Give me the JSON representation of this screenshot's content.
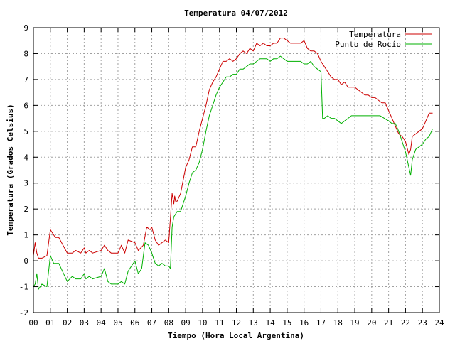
{
  "chart_data": {
    "type": "line",
    "title": "Temperatura 04/07/2012",
    "xlabel": "Tiempo (Hora Local Argentina)",
    "ylabel": "Temperatura (Grados Celsius)",
    "xlim": [
      0,
      24
    ],
    "ylim": [
      -2,
      9
    ],
    "x_ticks": [
      "00",
      "01",
      "02",
      "03",
      "04",
      "05",
      "06",
      "07",
      "08",
      "09",
      "10",
      "11",
      "12",
      "13",
      "14",
      "15",
      "16",
      "17",
      "18",
      "19",
      "20",
      "21",
      "22",
      "23",
      "24"
    ],
    "y_ticks": [
      "-2",
      "-1",
      "0",
      "1",
      "2",
      "3",
      "4",
      "5",
      "6",
      "7",
      "8",
      "9"
    ],
    "grid": true,
    "legend_position": "top-right",
    "series": [
      {
        "name": "Temperatura",
        "color": "#cc0000",
        "x": [
          0.0,
          0.1,
          0.2,
          0.3,
          0.5,
          0.8,
          1.0,
          1.2,
          1.3,
          1.5,
          2.0,
          2.3,
          2.5,
          2.8,
          3.0,
          3.1,
          3.3,
          3.5,
          4.0,
          4.2,
          4.4,
          4.6,
          5.0,
          5.2,
          5.4,
          5.6,
          6.0,
          6.2,
          6.5,
          6.7,
          6.9,
          7.0,
          7.2,
          7.4,
          7.6,
          7.8,
          8.0,
          8.2,
          8.3,
          8.35,
          8.4,
          8.5,
          8.7,
          9.0,
          9.2,
          9.4,
          9.6,
          9.8,
          10.0,
          10.2,
          10.4,
          10.6,
          10.8,
          11.0,
          11.2,
          11.4,
          11.6,
          11.8,
          12.0,
          12.2,
          12.4,
          12.6,
          12.8,
          13.0,
          13.2,
          13.4,
          13.6,
          13.8,
          14.0,
          14.2,
          14.4,
          14.6,
          14.8,
          15.0,
          15.2,
          15.4,
          15.6,
          15.8,
          16.0,
          16.2,
          16.4,
          16.6,
          16.8,
          17.0,
          17.2,
          17.4,
          17.6,
          17.8,
          18.0,
          18.2,
          18.4,
          18.6,
          18.8,
          19.0,
          19.2,
          19.4,
          19.6,
          19.8,
          20.0,
          20.2,
          20.4,
          20.6,
          20.8,
          21.0,
          21.2,
          21.4,
          21.6,
          21.8,
          22.0,
          22.2,
          22.3,
          22.4,
          22.6,
          22.8,
          23.0,
          23.2,
          23.4,
          23.6
        ],
        "y": [
          0.2,
          0.7,
          0.3,
          0.1,
          0.1,
          0.2,
          1.2,
          1.0,
          0.9,
          0.9,
          0.3,
          0.3,
          0.4,
          0.3,
          0.5,
          0.3,
          0.4,
          0.3,
          0.4,
          0.6,
          0.4,
          0.3,
          0.3,
          0.6,
          0.3,
          0.8,
          0.7,
          0.4,
          0.6,
          1.3,
          1.2,
          1.3,
          0.8,
          0.6,
          0.7,
          0.8,
          0.7,
          2.6,
          2.2,
          2.5,
          2.3,
          2.3,
          2.6,
          3.6,
          3.9,
          4.4,
          4.4,
          5.0,
          5.5,
          6.0,
          6.6,
          6.9,
          7.1,
          7.4,
          7.7,
          7.7,
          7.8,
          7.7,
          7.8,
          8.0,
          8.1,
          8.0,
          8.2,
          8.1,
          8.4,
          8.3,
          8.4,
          8.3,
          8.3,
          8.4,
          8.4,
          8.6,
          8.6,
          8.5,
          8.4,
          8.4,
          8.4,
          8.4,
          8.5,
          8.2,
          8.1,
          8.1,
          8.0,
          7.7,
          7.5,
          7.3,
          7.1,
          7.0,
          7.0,
          6.8,
          6.9,
          6.7,
          6.7,
          6.7,
          6.6,
          6.5,
          6.4,
          6.4,
          6.3,
          6.3,
          6.2,
          6.1,
          6.1,
          5.8,
          5.5,
          5.2,
          4.9,
          4.8,
          4.6,
          4.1,
          4.3,
          4.8,
          4.9,
          5.0,
          5.1,
          5.4,
          5.7,
          5.7
        ]
      },
      {
        "name": "Punto de Rocío",
        "color": "#00b000",
        "x": [
          0.0,
          0.1,
          0.2,
          0.3,
          0.5,
          0.8,
          1.0,
          1.2,
          1.5,
          2.0,
          2.3,
          2.5,
          2.8,
          3.0,
          3.1,
          3.3,
          3.5,
          4.0,
          4.2,
          4.4,
          4.6,
          5.0,
          5.2,
          5.4,
          5.6,
          6.0,
          6.2,
          6.4,
          6.6,
          6.8,
          7.0,
          7.2,
          7.4,
          7.6,
          7.8,
          8.0,
          8.1,
          8.2,
          8.3,
          8.5,
          8.7,
          9.0,
          9.2,
          9.4,
          9.6,
          9.8,
          10.0,
          10.2,
          10.4,
          10.6,
          10.8,
          11.0,
          11.2,
          11.4,
          11.6,
          11.8,
          12.0,
          12.2,
          12.4,
          12.6,
          12.8,
          13.0,
          13.2,
          13.4,
          13.6,
          13.8,
          14.0,
          14.2,
          14.4,
          14.6,
          14.8,
          15.0,
          15.2,
          15.4,
          15.6,
          15.8,
          16.0,
          16.2,
          16.4,
          16.6,
          16.8,
          17.0,
          17.1,
          17.2,
          17.4,
          17.6,
          17.8,
          18.0,
          18.2,
          18.4,
          18.6,
          18.8,
          19.0,
          19.5,
          20.0,
          20.5,
          21.0,
          21.2,
          21.4,
          21.6,
          21.8,
          22.0,
          22.2,
          22.3,
          22.4,
          22.6,
          22.8,
          23.0,
          23.2,
          23.4,
          23.6
        ],
        "y": [
          -1.0,
          -0.9,
          -0.5,
          -1.1,
          -0.9,
          -1.0,
          0.2,
          -0.1,
          -0.1,
          -0.8,
          -0.6,
          -0.7,
          -0.7,
          -0.5,
          -0.7,
          -0.6,
          -0.7,
          -0.6,
          -0.3,
          -0.8,
          -0.9,
          -0.9,
          -0.8,
          -0.9,
          -0.4,
          0.0,
          -0.5,
          -0.3,
          0.7,
          0.6,
          0.3,
          -0.1,
          -0.2,
          -0.1,
          -0.2,
          -0.2,
          -0.3,
          1.3,
          1.7,
          1.9,
          1.9,
          2.5,
          3.0,
          3.4,
          3.5,
          3.8,
          4.3,
          5.0,
          5.6,
          6.0,
          6.4,
          6.7,
          6.9,
          7.1,
          7.1,
          7.2,
          7.2,
          7.4,
          7.4,
          7.5,
          7.6,
          7.6,
          7.7,
          7.8,
          7.8,
          7.8,
          7.7,
          7.8,
          7.8,
          7.9,
          7.8,
          7.7,
          7.7,
          7.7,
          7.7,
          7.7,
          7.6,
          7.6,
          7.7,
          7.5,
          7.4,
          7.3,
          5.5,
          5.5,
          5.6,
          5.5,
          5.5,
          5.4,
          5.3,
          5.4,
          5.5,
          5.6,
          5.6,
          5.6,
          5.6,
          5.6,
          5.4,
          5.3,
          5.3,
          5.0,
          4.6,
          4.2,
          3.6,
          3.3,
          3.9,
          4.3,
          4.4,
          4.5,
          4.7,
          4.8,
          5.1
        ]
      }
    ]
  }
}
